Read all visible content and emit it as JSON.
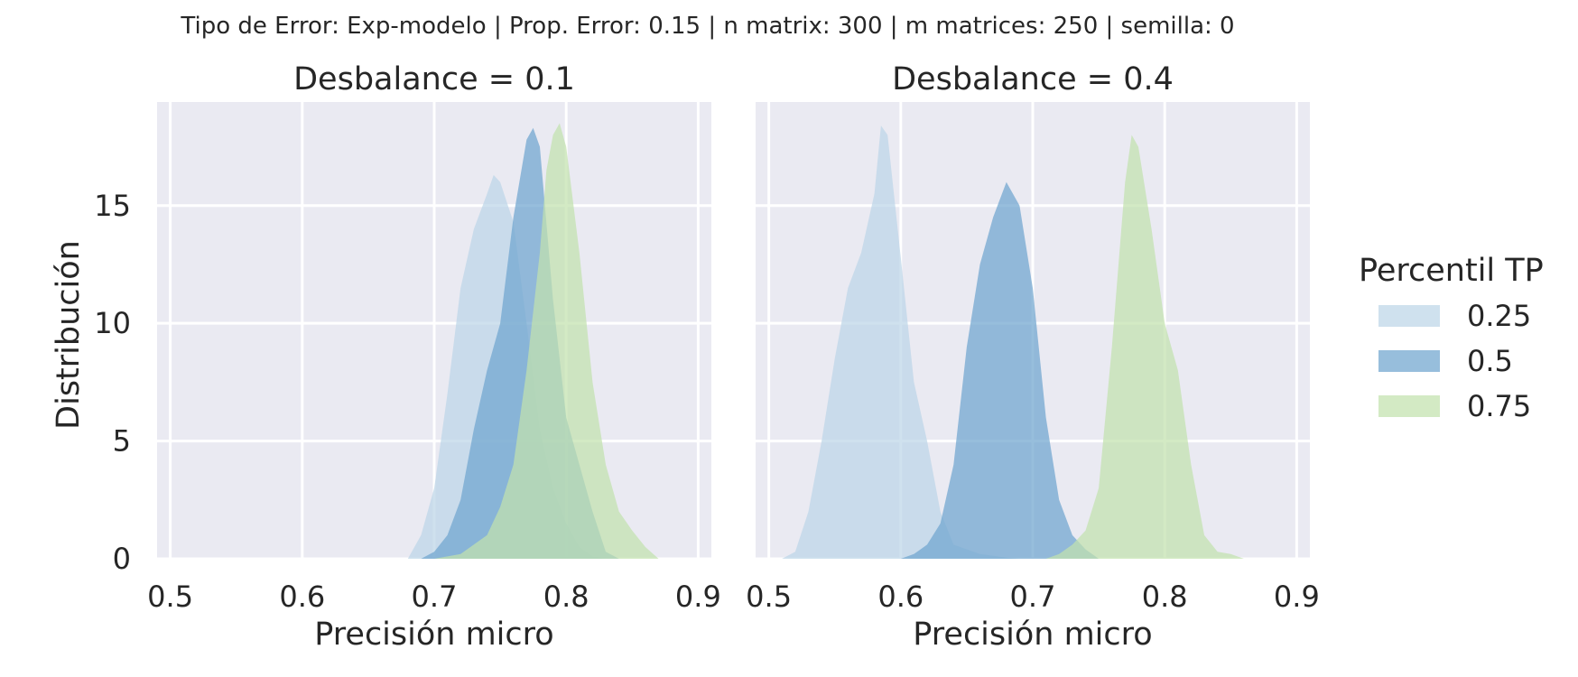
{
  "chart_data": {
    "type": "area",
    "kind": "kde-density",
    "suptitle": "Tipo de Error: Exp-modelo | Prop. Error: 0.15 | n matrix: 300 | m matrices: 250 | semilla: 0",
    "ylabel": "Distribución",
    "legend": {
      "title": "Percentil TP",
      "position": "right",
      "entries": [
        {
          "label": "0.25",
          "color": "#bcd5e7"
        },
        {
          "label": "0.5",
          "color": "#6fa5cf"
        },
        {
          "label": "0.75",
          "color": "#c2e2ad"
        }
      ]
    },
    "grid": true,
    "xlim": [
      0.49,
      0.91
    ],
    "ylim": [
      0,
      19.4
    ],
    "xticks": [
      "0.5",
      "0.6",
      "0.7",
      "0.8",
      "0.9"
    ],
    "yticks": [
      "0",
      "5",
      "10",
      "15"
    ],
    "panels": [
      {
        "title": "Desbalance = 0.1",
        "xlabel": "Precisión micro",
        "series": [
          {
            "name": "0.25",
            "x": [
              0.68,
              0.69,
              0.7,
              0.71,
              0.72,
              0.73,
              0.74,
              0.745,
              0.75,
              0.76,
              0.77,
              0.78,
              0.79,
              0.8,
              0.81,
              0.82,
              0.83
            ],
            "y": [
              0,
              1,
              3,
              7,
              11.5,
              14,
              15.5,
              16.3,
              16,
              14.3,
              10,
              5.5,
              3,
              1.5,
              0.5,
              0.1,
              0
            ]
          },
          {
            "name": "0.5",
            "x": [
              0.69,
              0.7,
              0.71,
              0.72,
              0.73,
              0.74,
              0.75,
              0.76,
              0.77,
              0.775,
              0.78,
              0.79,
              0.8,
              0.81,
              0.82,
              0.83,
              0.84
            ],
            "y": [
              0,
              0.3,
              1,
              2.5,
              5.5,
              8,
              10,
              14.5,
              17.8,
              18.3,
              17.5,
              11,
              6,
              4,
              2,
              0.3,
              0
            ]
          },
          {
            "name": "0.75",
            "x": [
              0.7,
              0.72,
              0.74,
              0.75,
              0.76,
              0.77,
              0.78,
              0.785,
              0.79,
              0.795,
              0.8,
              0.81,
              0.82,
              0.83,
              0.84,
              0.85,
              0.86,
              0.87
            ],
            "y": [
              0,
              0.2,
              1,
              2.2,
              4,
              8,
              13,
              16.5,
              18,
              18.5,
              17.5,
              13,
              7.5,
              4,
              2,
              1.2,
              0.5,
              0
            ]
          }
        ]
      },
      {
        "title": "Desbalance = 0.4",
        "xlabel": "Precisión micro",
        "series": [
          {
            "name": "0.25",
            "x": [
              0.51,
              0.52,
              0.53,
              0.54,
              0.55,
              0.56,
              0.57,
              0.58,
              0.585,
              0.59,
              0.6,
              0.61,
              0.62,
              0.63,
              0.64,
              0.66,
              0.68,
              0.69
            ],
            "y": [
              0,
              0.3,
              2,
              5,
              8.5,
              11.5,
              13,
              15.5,
              18.4,
              18,
              12.8,
              7.5,
              5,
              2,
              0.6,
              0.2,
              0.05,
              0
            ]
          },
          {
            "name": "0.5",
            "x": [
              0.6,
              0.61,
              0.62,
              0.63,
              0.64,
              0.65,
              0.66,
              0.67,
              0.68,
              0.69,
              0.7,
              0.71,
              0.72,
              0.73,
              0.74,
              0.75
            ],
            "y": [
              0,
              0.2,
              0.6,
              1.5,
              4,
              9,
              12.5,
              14.5,
              16,
              15,
              11.5,
              6,
              2.5,
              1,
              0.4,
              0
            ]
          },
          {
            "name": "0.75",
            "x": [
              0.71,
              0.72,
              0.73,
              0.74,
              0.75,
              0.76,
              0.77,
              0.775,
              0.78,
              0.79,
              0.8,
              0.81,
              0.82,
              0.83,
              0.84,
              0.85,
              0.86
            ],
            "y": [
              0,
              0.2,
              0.6,
              1.2,
              3,
              9,
              16,
              18,
              17.5,
              14,
              10,
              8,
              4,
              1,
              0.3,
              0.2,
              0
            ]
          }
        ]
      }
    ]
  }
}
